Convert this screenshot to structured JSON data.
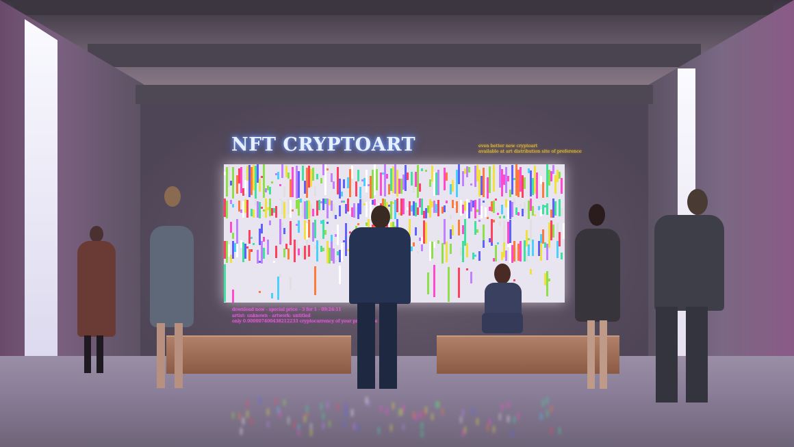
{
  "exhibit": {
    "title": "NFT CRYPTOART",
    "top_note": [
      "even better new cryptoart",
      "available at art distribution site of preference"
    ],
    "bottom_note": [
      "download now - special price - 3 for 1 -    09:24:11",
      "artist: unknown - artwork: untitled",
      "only 0.000007400438212233 cryptocurrency of your preference"
    ]
  },
  "colors": {
    "title_glow": "#7aa8ff",
    "top_note": "#f4d23a",
    "bottom_note": "#ff6cf0",
    "wall": "#5e5262",
    "bench": "#a07058"
  }
}
